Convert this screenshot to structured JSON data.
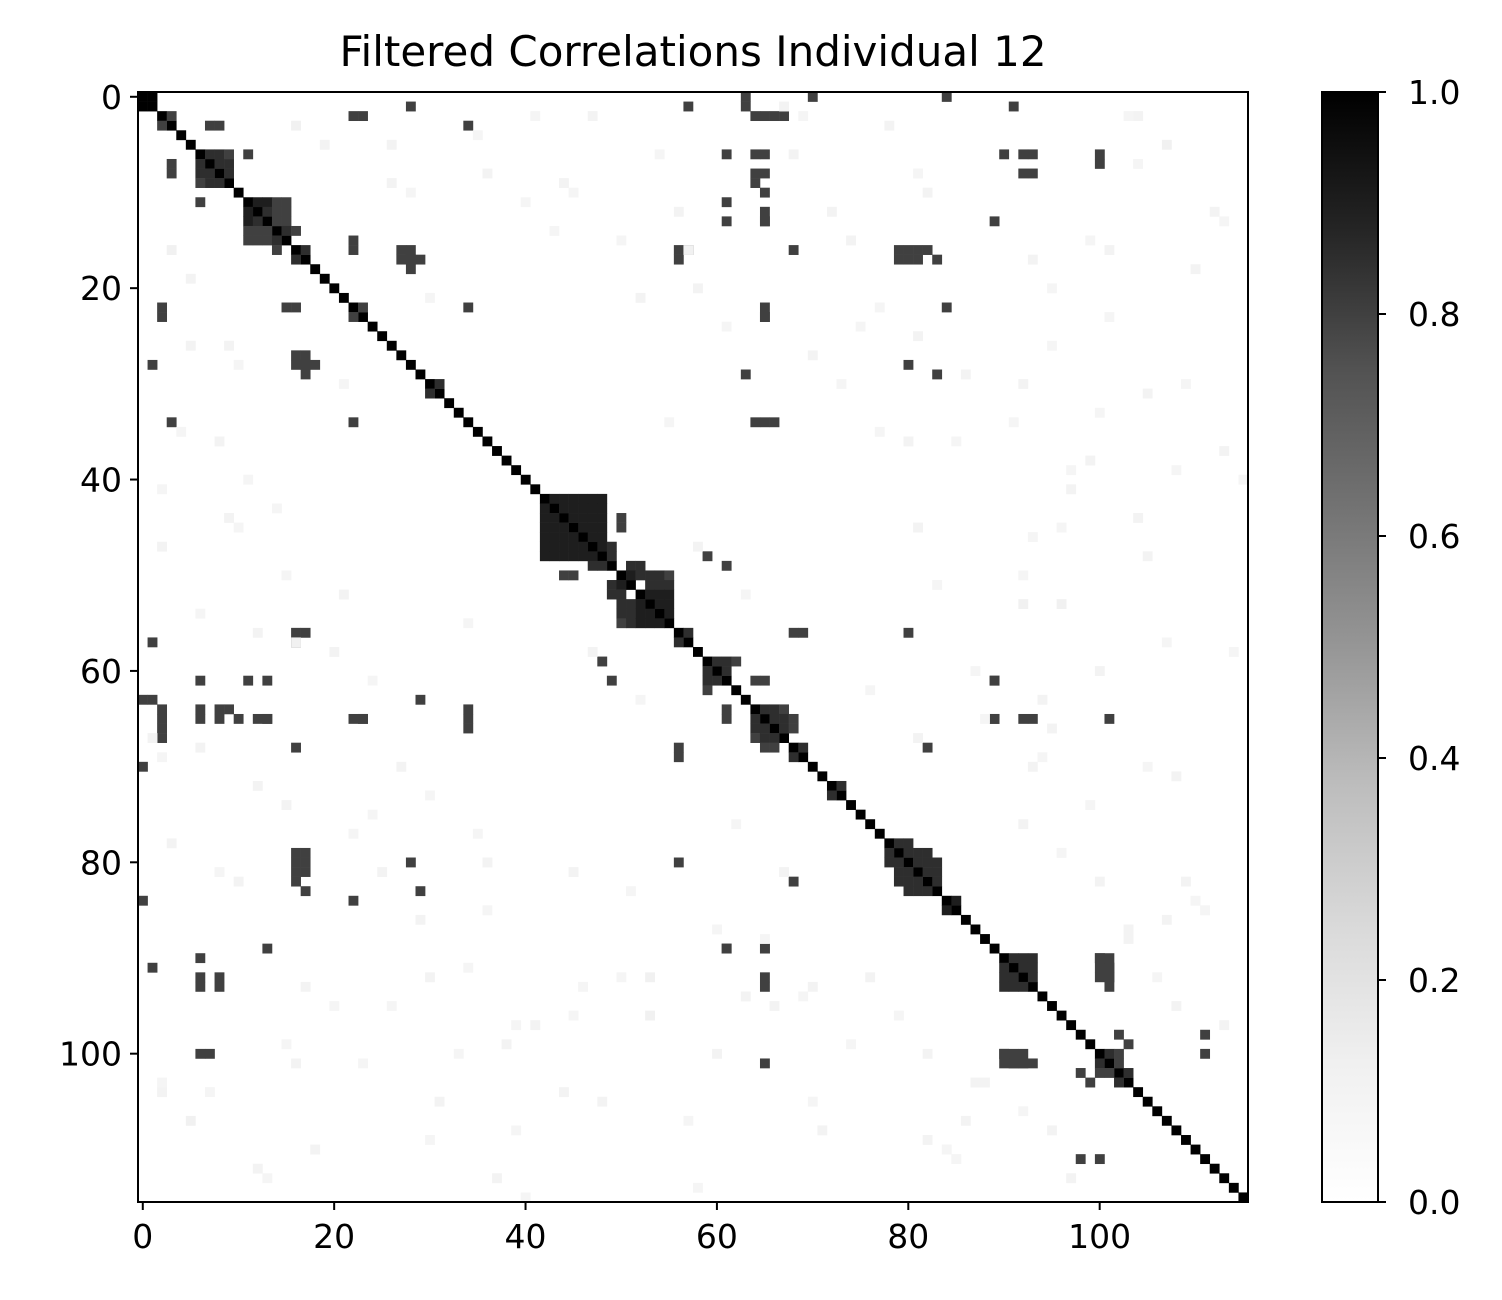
{
  "chart_data": {
    "type": "heatmap",
    "title": "Filtered Correlations Individual 12",
    "n": 116,
    "x_ticks": [
      0,
      20,
      40,
      60,
      80,
      100
    ],
    "y_ticks": [
      0,
      20,
      40,
      60,
      80,
      100
    ],
    "colorbar": {
      "min": 0.0,
      "max": 1.0,
      "ticks": [
        "0.0",
        "0.2",
        "0.4",
        "0.6",
        "0.8",
        "1.0"
      ],
      "colormap": "Greys"
    },
    "diagonal_value": 1.0,
    "cells": [
      [
        0,
        1,
        1.0
      ],
      [
        2,
        3,
        0.8
      ],
      [
        2,
        22,
        0.8
      ],
      [
        2,
        23,
        0.8
      ],
      [
        2,
        64,
        0.8
      ],
      [
        2,
        65,
        0.8
      ],
      [
        2,
        66,
        0.8
      ],
      [
        2,
        67,
        0.8
      ],
      [
        3,
        7,
        0.8
      ],
      [
        3,
        8,
        0.8
      ],
      [
        1,
        57,
        0.8
      ],
      [
        1,
        63,
        0.8
      ],
      [
        1,
        91,
        0.8
      ],
      [
        3,
        34,
        0.8
      ],
      [
        0,
        70,
        0.8
      ],
      [
        0,
        84,
        0.8
      ],
      [
        0,
        63,
        0.8
      ],
      [
        1,
        28,
        0.8
      ],
      [
        6,
        7,
        0.85
      ],
      [
        6,
        8,
        0.85
      ],
      [
        7,
        8,
        0.85
      ],
      [
        7,
        9,
        0.85
      ],
      [
        8,
        9,
        0.85
      ],
      [
        6,
        9,
        0.8
      ],
      [
        6,
        11,
        0.8
      ],
      [
        6,
        64,
        0.8
      ],
      [
        6,
        65,
        0.8
      ],
      [
        6,
        61,
        0.8
      ],
      [
        6,
        90,
        0.8
      ],
      [
        6,
        92,
        0.8
      ],
      [
        6,
        93,
        0.8
      ],
      [
        6,
        100,
        0.8
      ],
      [
        8,
        64,
        0.8
      ],
      [
        8,
        65,
        0.8
      ],
      [
        8,
        92,
        0.8
      ],
      [
        8,
        93,
        0.8
      ],
      [
        7,
        100,
        0.8
      ],
      [
        11,
        12,
        0.9
      ],
      [
        11,
        13,
        0.9
      ],
      [
        12,
        13,
        0.85
      ],
      [
        11,
        15,
        0.8
      ],
      [
        12,
        15,
        0.8
      ],
      [
        13,
        15,
        0.8
      ],
      [
        14,
        15,
        0.85
      ],
      [
        14,
        16,
        0.8
      ],
      [
        11,
        61,
        0.8
      ],
      [
        13,
        61,
        0.8
      ],
      [
        13,
        65,
        0.8
      ],
      [
        13,
        89,
        0.8
      ],
      [
        14,
        12,
        0.8
      ],
      [
        14,
        11,
        0.8
      ],
      [
        14,
        13,
        0.8
      ],
      [
        16,
        17,
        0.85
      ],
      [
        17,
        28,
        0.8
      ],
      [
        17,
        29,
        0.8
      ],
      [
        16,
        28,
        0.8
      ],
      [
        16,
        56,
        0.8
      ],
      [
        16,
        57,
        0.8
      ],
      [
        16,
        68,
        0.8
      ],
      [
        17,
        56,
        0.8
      ],
      [
        16,
        79,
        0.8
      ],
      [
        16,
        80,
        0.8
      ],
      [
        16,
        81,
        0.8
      ],
      [
        16,
        82,
        0.8
      ],
      [
        17,
        79,
        0.8
      ],
      [
        17,
        80,
        0.8
      ],
      [
        17,
        81,
        0.8
      ],
      [
        17,
        83,
        0.8
      ],
      [
        22,
        23,
        0.8
      ],
      [
        22,
        15,
        0.8
      ],
      [
        22,
        16,
        0.8
      ],
      [
        22,
        34,
        0.8
      ],
      [
        22,
        84,
        0.8
      ],
      [
        23,
        65,
        0.8
      ],
      [
        27,
        16,
        0.8
      ],
      [
        27,
        17,
        0.8
      ],
      [
        28,
        17,
        0.8
      ],
      [
        28,
        18,
        0.8
      ],
      [
        28,
        80,
        0.8
      ],
      [
        29,
        63,
        0.8
      ],
      [
        29,
        83,
        0.8
      ],
      [
        30,
        31,
        0.85
      ],
      [
        34,
        64,
        0.8
      ],
      [
        34,
        65,
        0.8
      ],
      [
        34,
        66,
        0.8
      ],
      [
        42,
        43,
        0.9
      ],
      [
        42,
        44,
        0.9
      ],
      [
        42,
        45,
        0.9
      ],
      [
        42,
        46,
        0.9
      ],
      [
        42,
        47,
        0.9
      ],
      [
        42,
        48,
        0.9
      ],
      [
        43,
        44,
        0.9
      ],
      [
        43,
        45,
        0.9
      ],
      [
        43,
        46,
        0.9
      ],
      [
        43,
        47,
        0.9
      ],
      [
        43,
        48,
        0.9
      ],
      [
        44,
        45,
        0.9
      ],
      [
        44,
        46,
        0.9
      ],
      [
        44,
        47,
        0.9
      ],
      [
        44,
        48,
        0.9
      ],
      [
        45,
        46,
        0.9
      ],
      [
        45,
        47,
        0.9
      ],
      [
        45,
        48,
        0.9
      ],
      [
        46,
        47,
        0.9
      ],
      [
        46,
        48,
        0.9
      ],
      [
        47,
        48,
        0.9
      ],
      [
        44,
        50,
        0.8
      ],
      [
        45,
        50,
        0.8
      ],
      [
        47,
        49,
        0.85
      ],
      [
        48,
        49,
        0.85
      ],
      [
        49,
        51,
        0.85
      ],
      [
        49,
        52,
        0.85
      ],
      [
        50,
        51,
        0.9
      ],
      [
        50,
        52,
        0.85
      ],
      [
        50,
        53,
        0.85
      ],
      [
        50,
        54,
        0.85
      ],
      [
        50,
        55,
        0.8
      ],
      [
        51,
        53,
        0.85
      ],
      [
        51,
        54,
        0.85
      ],
      [
        51,
        55,
        0.85
      ],
      [
        52,
        53,
        0.9
      ],
      [
        52,
        54,
        0.9
      ],
      [
        52,
        55,
        0.9
      ],
      [
        53,
        54,
        0.9
      ],
      [
        53,
        55,
        0.9
      ],
      [
        54,
        55,
        0.9
      ],
      [
        49,
        61,
        0.8
      ],
      [
        48,
        59,
        0.8
      ],
      [
        56,
        57,
        0.85
      ],
      [
        56,
        68,
        0.8
      ],
      [
        56,
        69,
        0.8
      ],
      [
        56,
        80,
        0.8
      ],
      [
        59,
        60,
        0.85
      ],
      [
        59,
        61,
        0.85
      ],
      [
        59,
        62,
        0.8
      ],
      [
        60,
        61,
        0.85
      ],
      [
        61,
        65,
        0.8
      ],
      [
        61,
        89,
        0.8
      ],
      [
        64,
        65,
        0.85
      ],
      [
        64,
        66,
        0.85
      ],
      [
        64,
        67,
        0.8
      ],
      [
        65,
        66,
        0.85
      ],
      [
        65,
        67,
        0.85
      ],
      [
        66,
        67,
        0.85
      ],
      [
        65,
        68,
        0.8
      ],
      [
        66,
        68,
        0.8
      ],
      [
        64,
        61,
        0.8
      ],
      [
        65,
        89,
        0.8
      ],
      [
        65,
        92,
        0.8
      ],
      [
        65,
        93,
        0.8
      ],
      [
        65,
        101,
        0.8
      ],
      [
        64,
        9,
        0.8
      ],
      [
        65,
        10,
        0.8
      ],
      [
        65,
        12,
        0.8
      ],
      [
        65,
        13,
        0.8
      ],
      [
        65,
        22,
        0.8
      ],
      [
        65,
        23,
        0.8
      ],
      [
        68,
        69,
        0.85
      ],
      [
        68,
        82,
        0.8
      ],
      [
        72,
        73,
        0.85
      ],
      [
        78,
        79,
        0.85
      ],
      [
        78,
        80,
        0.85
      ],
      [
        79,
        80,
        0.85
      ],
      [
        79,
        81,
        0.85
      ],
      [
        79,
        82,
        0.85
      ],
      [
        80,
        81,
        0.85
      ],
      [
        80,
        82,
        0.85
      ],
      [
        80,
        83,
        0.85
      ],
      [
        81,
        82,
        0.85
      ],
      [
        81,
        83,
        0.85
      ],
      [
        82,
        83,
        0.85
      ],
      [
        84,
        85,
        0.9
      ],
      [
        90,
        91,
        0.85
      ],
      [
        90,
        92,
        0.85
      ],
      [
        90,
        93,
        0.85
      ],
      [
        91,
        92,
        0.85
      ],
      [
        91,
        93,
        0.85
      ],
      [
        92,
        93,
        0.85
      ],
      [
        90,
        100,
        0.8
      ],
      [
        91,
        100,
        0.8
      ],
      [
        91,
        101,
        0.8
      ],
      [
        92,
        100,
        0.8
      ],
      [
        92,
        101,
        0.8
      ],
      [
        90,
        101,
        0.8
      ],
      [
        89,
        61,
        0.8
      ],
      [
        89,
        65,
        0.8
      ],
      [
        98,
        102,
        0.8
      ],
      [
        99,
        103,
        0.8
      ],
      [
        100,
        101,
        0.85
      ],
      [
        100,
        102,
        0.8
      ],
      [
        100,
        111,
        0.8
      ],
      [
        101,
        102,
        0.8
      ],
      [
        102,
        103,
        0.85
      ],
      [
        111,
        98,
        0.8
      ],
      [
        101,
        93,
        0.8
      ],
      [
        101,
        92,
        0.8
      ],
      [
        101,
        91,
        0.8
      ],
      [
        100,
        90,
        0.8
      ],
      [
        3,
        16,
        0.12
      ],
      [
        5,
        19,
        0.1
      ],
      [
        14,
        43,
        0.08
      ],
      [
        20,
        58,
        0.1
      ],
      [
        24,
        61,
        0.08
      ],
      [
        27,
        70,
        0.1
      ],
      [
        30,
        92,
        0.1
      ],
      [
        33,
        100,
        0.08
      ],
      [
        37,
        113,
        0.1
      ],
      [
        41,
        2,
        0.08
      ],
      [
        44,
        9,
        0.1
      ],
      [
        50,
        15,
        0.08
      ],
      [
        52,
        21,
        0.1
      ],
      [
        55,
        34,
        0.08
      ],
      [
        58,
        47,
        0.1
      ],
      [
        62,
        76,
        0.08
      ],
      [
        66,
        95,
        0.1
      ],
      [
        70,
        105,
        0.08
      ],
      [
        74,
        15,
        0.1
      ],
      [
        77,
        22,
        0.08
      ],
      [
        80,
        36,
        0.1
      ],
      [
        83,
        51,
        0.08
      ],
      [
        86,
        107,
        0.1
      ],
      [
        87,
        60,
        0.08
      ],
      [
        93,
        70,
        0.1
      ],
      [
        95,
        20,
        0.08
      ],
      [
        97,
        41,
        0.1
      ],
      [
        104,
        7,
        0.08
      ],
      [
        107,
        5,
        0.12
      ],
      [
        109,
        30,
        0.08
      ],
      [
        112,
        12,
        0.1
      ],
      [
        114,
        58,
        0.08
      ],
      [
        2,
        104,
        0.1
      ],
      [
        4,
        35,
        0.08
      ],
      [
        9,
        26,
        0.1
      ],
      [
        10,
        45,
        0.08
      ],
      [
        12,
        72,
        0.1
      ],
      [
        15,
        99,
        0.08
      ],
      [
        18,
        110,
        0.1
      ],
      [
        21,
        30,
        0.08
      ],
      [
        25,
        81,
        0.1
      ],
      [
        26,
        95,
        0.08
      ],
      [
        31,
        105,
        0.1
      ],
      [
        35,
        77,
        0.08
      ],
      [
        38,
        99,
        0.1
      ],
      [
        39,
        108,
        0.08
      ],
      [
        45,
        81,
        0.1
      ],
      [
        46,
        93,
        0.08
      ],
      [
        48,
        105,
        0.1
      ],
      [
        53,
        92,
        0.12
      ],
      [
        57,
        107,
        0.08
      ],
      [
        60,
        100,
        0.1
      ],
      [
        63,
        52,
        0.08
      ],
      [
        67,
        81,
        0.1
      ],
      [
        69,
        94,
        0.08
      ],
      [
        71,
        108,
        0.1
      ],
      [
        73,
        30,
        0.08
      ],
      [
        76,
        92,
        0.1
      ],
      [
        79,
        96,
        0.08
      ],
      [
        82,
        100,
        0.1
      ],
      [
        85,
        111,
        0.08
      ],
      [
        88,
        103,
        0.1
      ],
      [
        92,
        50,
        0.08
      ],
      [
        94,
        63,
        0.1
      ],
      [
        96,
        53,
        0.12
      ],
      [
        99,
        74,
        0.08
      ],
      [
        103,
        87,
        0.1
      ],
      [
        106,
        92,
        0.08
      ],
      [
        108,
        95,
        0.1
      ],
      [
        110,
        84,
        0.08
      ],
      [
        113,
        97,
        0.1
      ],
      [
        115,
        40,
        0.08
      ],
      [
        26,
        5,
        0.1
      ],
      [
        28,
        10,
        0.08
      ],
      [
        36,
        8,
        0.1
      ],
      [
        40,
        11,
        0.08
      ],
      [
        47,
        2,
        0.1
      ],
      [
        54,
        6,
        0.08
      ],
      [
        56,
        12,
        0.1
      ],
      [
        57,
        16,
        0.12
      ],
      [
        67,
        1,
        0.1
      ],
      [
        68,
        6,
        0.1
      ],
      [
        69,
        2,
        0.08
      ],
      [
        75,
        24,
        0.08
      ],
      [
        78,
        3,
        0.1
      ],
      [
        81,
        8,
        0.08
      ],
      [
        82,
        10,
        0.1
      ],
      [
        85,
        36,
        0.08
      ],
      [
        86,
        29,
        0.1
      ],
      [
        88,
        65,
        0.08
      ],
      [
        91,
        34,
        0.08
      ],
      [
        93,
        17,
        0.1
      ],
      [
        96,
        45,
        0.08
      ],
      [
        97,
        39,
        0.08
      ],
      [
        101,
        16,
        0.1
      ],
      [
        101,
        23,
        0.08
      ],
      [
        103,
        2,
        0.08
      ],
      [
        104,
        44,
        0.1
      ],
      [
        109,
        82,
        0.1
      ],
      [
        113,
        13,
        0.08
      ]
    ]
  }
}
